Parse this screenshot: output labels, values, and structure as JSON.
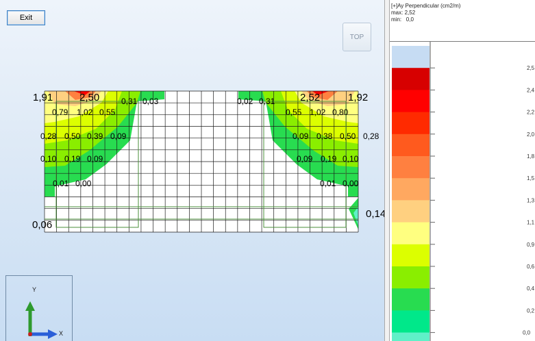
{
  "toolbar": {
    "exit_label": "Exit",
    "top_view_label": "TOP"
  },
  "viewport": {
    "axis_labels": {
      "y": "Y",
      "x": "X"
    },
    "plate_grid": {
      "columns": 26,
      "rows": 12
    },
    "value_labels": [
      "1,91",
      "2,50",
      "0,31",
      "0,03",
      "0,02",
      "0,31",
      "2,52",
      "1,92",
      "0,79",
      "1,02",
      "0,55",
      "0,55",
      "1,02",
      "0,80",
      "0,28",
      "0,50",
      "0,39",
      "0,09",
      "0,09",
      "0,38",
      "0,50",
      "0,28",
      "0,10",
      "0,19",
      "0,09",
      "0,09",
      "0,19",
      "0,10",
      "0,01",
      "0,00",
      "0,01",
      "0,00",
      "0,14",
      "0,06"
    ]
  },
  "legend": {
    "title": "[+]Ay Perpendicular (cm2/m)",
    "max_label": "max:",
    "max_value": "2,52",
    "min_label": "min:",
    "min_value": "0,0",
    "scale_labels": [
      "2,5",
      "2,4",
      "2,2",
      "2,0",
      "1,8",
      "1,5",
      "1,3",
      "1,1",
      "0,9",
      "0,6",
      "0,4",
      "0,2",
      "0,0"
    ],
    "color_bands": [
      "#c6dcf3",
      "#d70000",
      "#ff0000",
      "#ff2a00",
      "#ff5a1e",
      "#ff8040",
      "#ffa860",
      "#ffd080",
      "#ffff80",
      "#dcff00",
      "#8aee00",
      "#28dc50",
      "#00e88a",
      "#60f0c8"
    ]
  },
  "colors": {
    "plate_fill": "#ffffff",
    "grid_line": "#1a1a1a",
    "beam_line": "#4a8f3a",
    "axis_y": "#2e9a2e",
    "axis_x": "#2a5fd8",
    "axis_z": "#c82020"
  }
}
